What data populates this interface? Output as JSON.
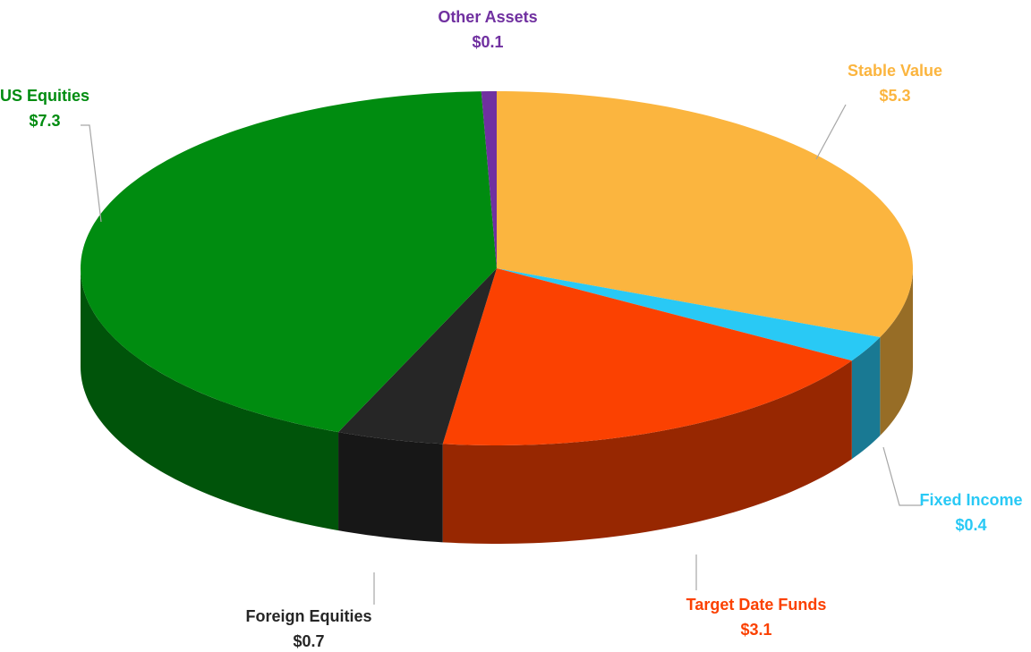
{
  "chart_data": {
    "type": "pie",
    "categories": [
      "Stable Value",
      "Fixed Income",
      "Target Date Funds",
      "Foreign Equities",
      "US Equities",
      "Other Assets"
    ],
    "values": [
      5.3,
      0.4,
      3.1,
      0.7,
      7.3,
      0.1
    ],
    "value_labels": [
      "$5.3",
      "$0.4",
      "$3.1",
      "$0.7",
      "$7.3",
      "$0.1"
    ],
    "colors": [
      "#fbb53f",
      "#29c9f5",
      "#fb4101",
      "#262626",
      "#008c10",
      "#7030a0"
    ],
    "label_colors": [
      "#fbb53f",
      "#29c9f5",
      "#fb4101",
      "#262626",
      "#008c10",
      "#7030a0"
    ]
  }
}
